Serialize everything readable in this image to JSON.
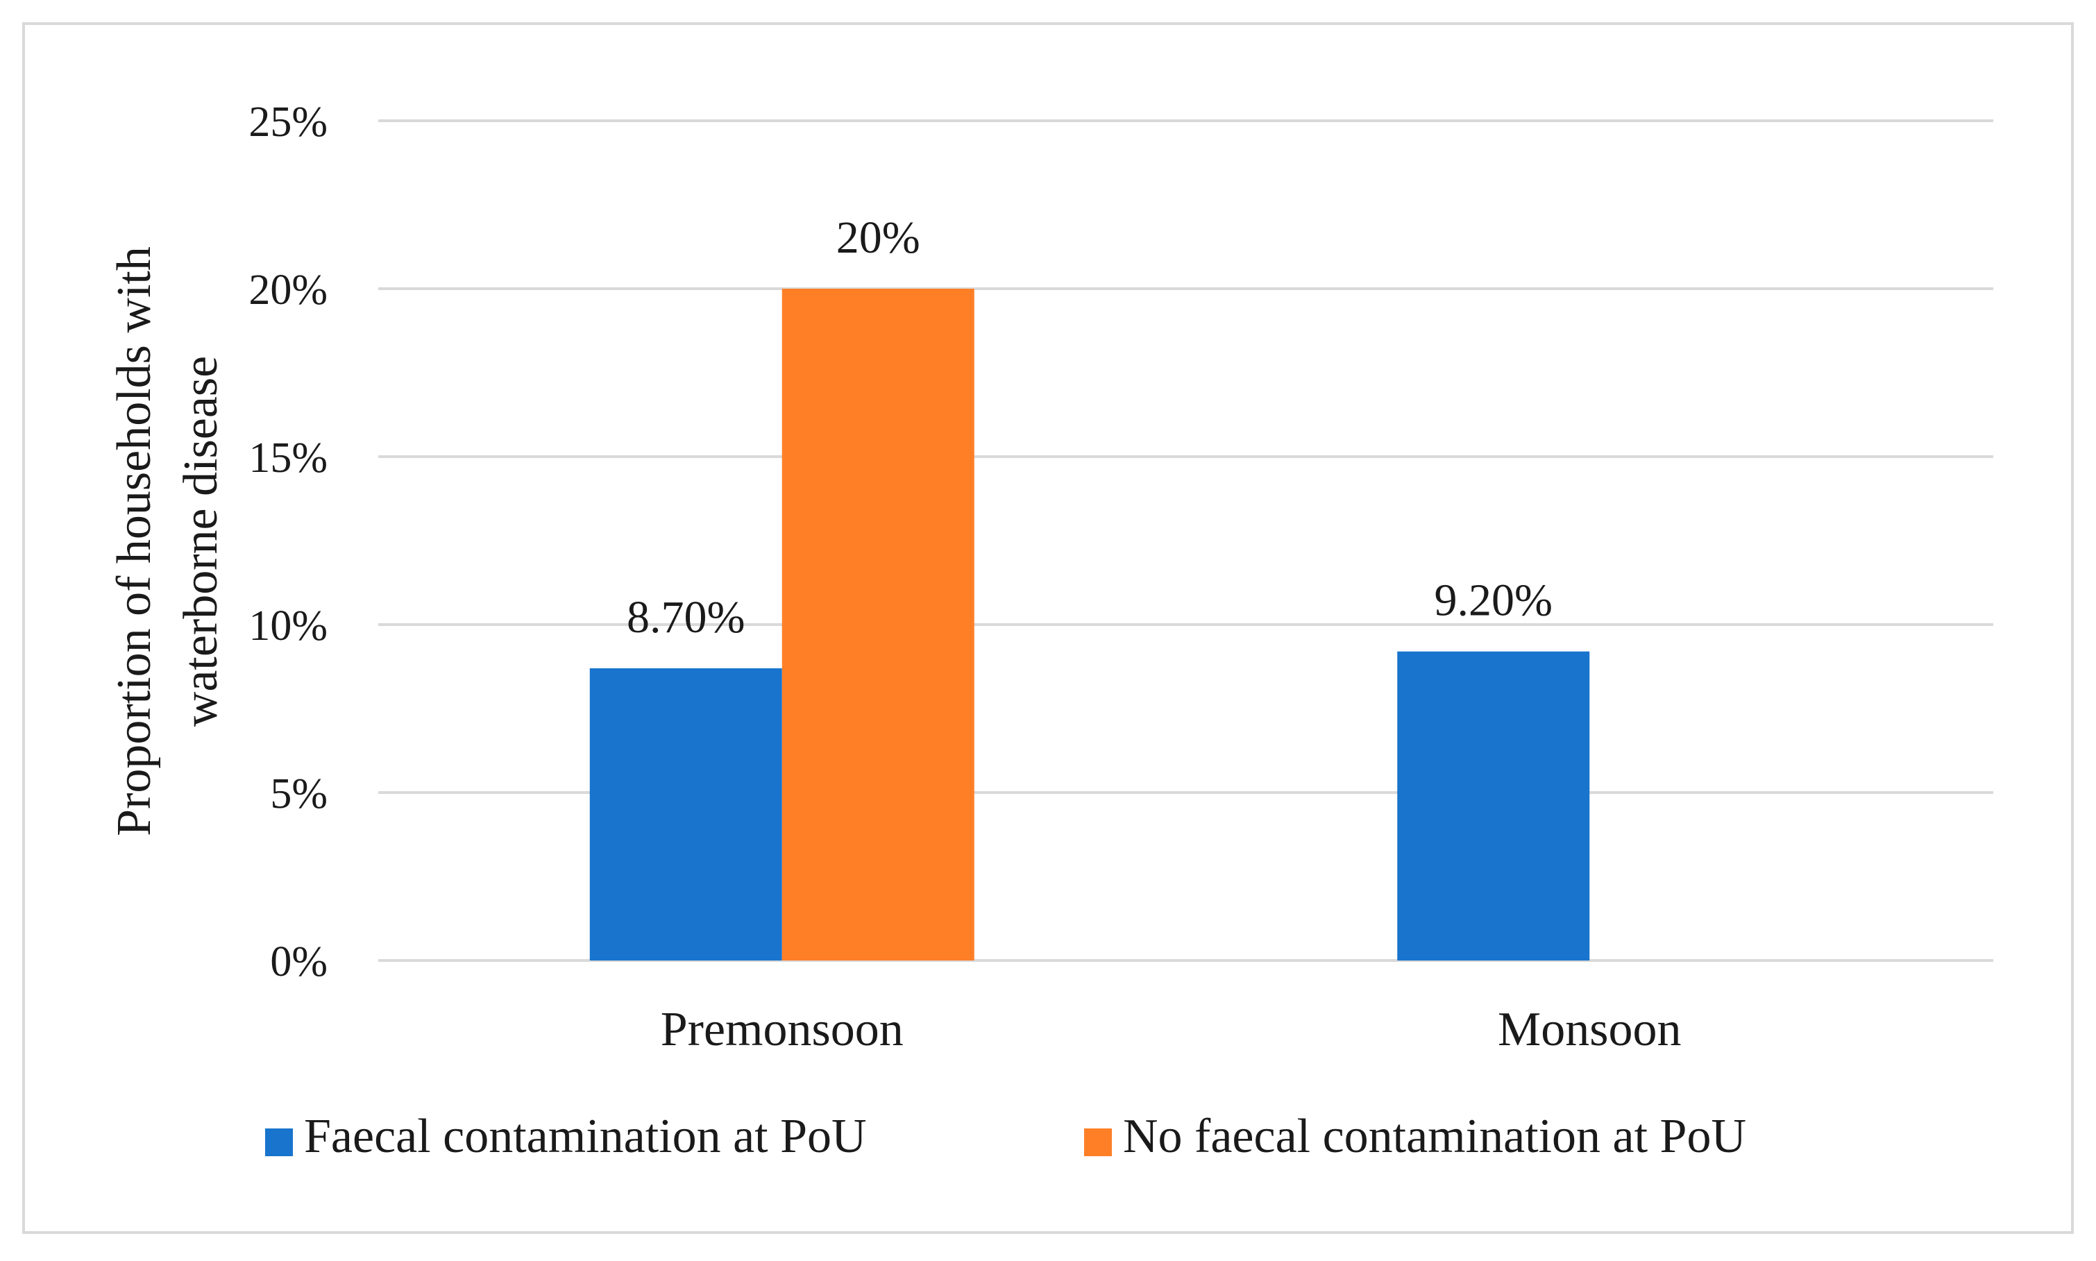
{
  "chart_data": {
    "type": "bar",
    "categories": [
      "Premonsoon",
      "Monsoon"
    ],
    "series": [
      {
        "name": "Faecal contamination at PoU",
        "values": [
          8.7,
          9.2
        ],
        "labels": [
          "8.70%",
          "9.20%"
        ],
        "color": "#1874CD"
      },
      {
        "name": "No faecal contamination at PoU",
        "values": [
          20,
          null
        ],
        "labels": [
          "20%",
          null
        ],
        "color": "#FF7F27"
      }
    ],
    "ylabel_lines": [
      "Proportion of households with",
      "waterborne disease"
    ],
    "xlabel": "",
    "ylim": [
      0,
      25
    ],
    "yticks": [
      0,
      5,
      10,
      15,
      20,
      25
    ],
    "ytick_labels": [
      "0%",
      "5%",
      "10%",
      "15%",
      "20%",
      "25%"
    ],
    "grid": true,
    "legend_position": "bottom",
    "colors": {
      "gridline": "#D9D9D9",
      "border": "#D9D9D9",
      "text": "#1a1a1a"
    }
  }
}
